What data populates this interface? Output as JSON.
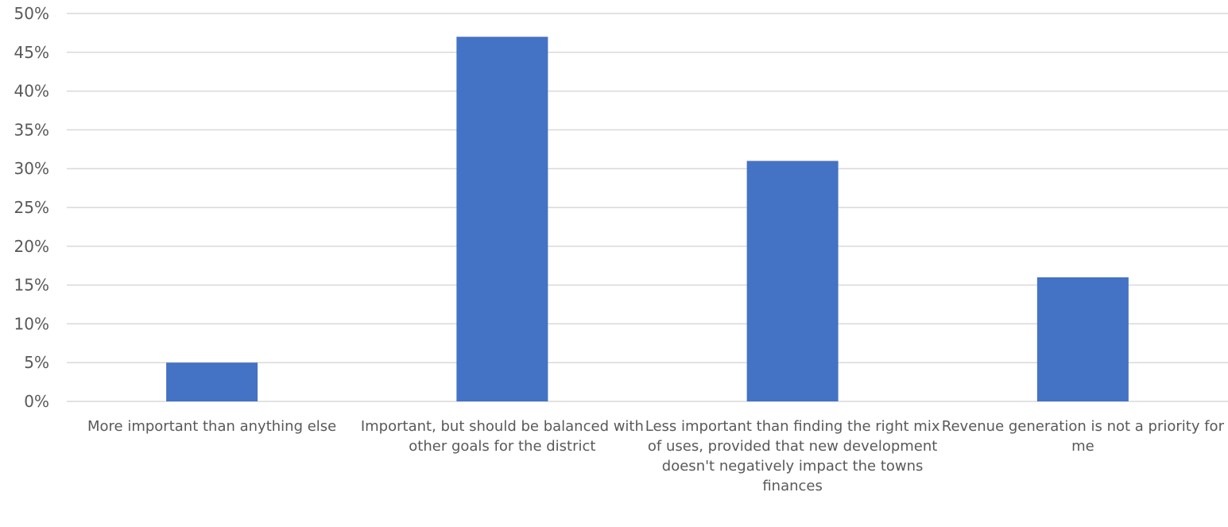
{
  "chart_data": {
    "type": "bar",
    "categories": [
      "More important than anything else",
      "Important, but should be balanced with other goals for the district",
      "Less important than finding the right mix of uses, provided that new development doesn't negatively impact the towns finances",
      "Revenue generation is not a priority for me"
    ],
    "values": [
      5,
      47,
      31,
      16
    ],
    "ylim": [
      0,
      50
    ],
    "ytick_step": 5,
    "ytick_labels": [
      "0%",
      "5%",
      "10%",
      "15%",
      "20%",
      "25%",
      "30%",
      "35%",
      "40%",
      "45%",
      "50%"
    ],
    "grid": true,
    "bar_color": "#4472C4",
    "grid_color": "#D9D9D9",
    "title": "",
    "xlabel": "",
    "ylabel": ""
  }
}
